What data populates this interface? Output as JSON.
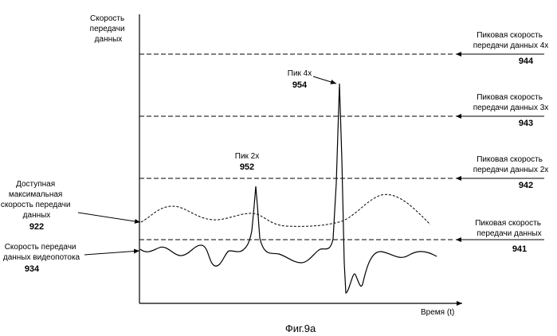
{
  "y_axis_label": [
    "Скорость",
    "передачи",
    "данных"
  ],
  "x_axis_label": "Время (t)",
  "caption": "Фиг.9а",
  "peak_rates": [
    {
      "lines": [
        "Пиковая скорость",
        "передачи данных 4х"
      ],
      "ref": "944"
    },
    {
      "lines": [
        "Пиковая скорость",
        "передачи данных 3х"
      ],
      "ref": "943"
    },
    {
      "lines": [
        "Пиковая скорость",
        "передачи данных 2х"
      ],
      "ref": "942"
    },
    {
      "lines": [
        "Пиковая скорость",
        "передачи данных"
      ],
      "ref": "941"
    }
  ],
  "peaks": [
    {
      "label": "Пик 2х",
      "ref": "952"
    },
    {
      "label": "Пик 4х",
      "ref": "954"
    }
  ],
  "available_rate": {
    "lines": [
      "Доступная",
      "максимальная",
      "скорость передачи",
      "данных"
    ],
    "ref": "922"
  },
  "video_rate": {
    "lines": [
      "Скорость передачи",
      "данных видеопотока"
    ],
    "ref": "934"
  },
  "colors": {
    "ink": "#000000",
    "background": "#ffffff"
  }
}
